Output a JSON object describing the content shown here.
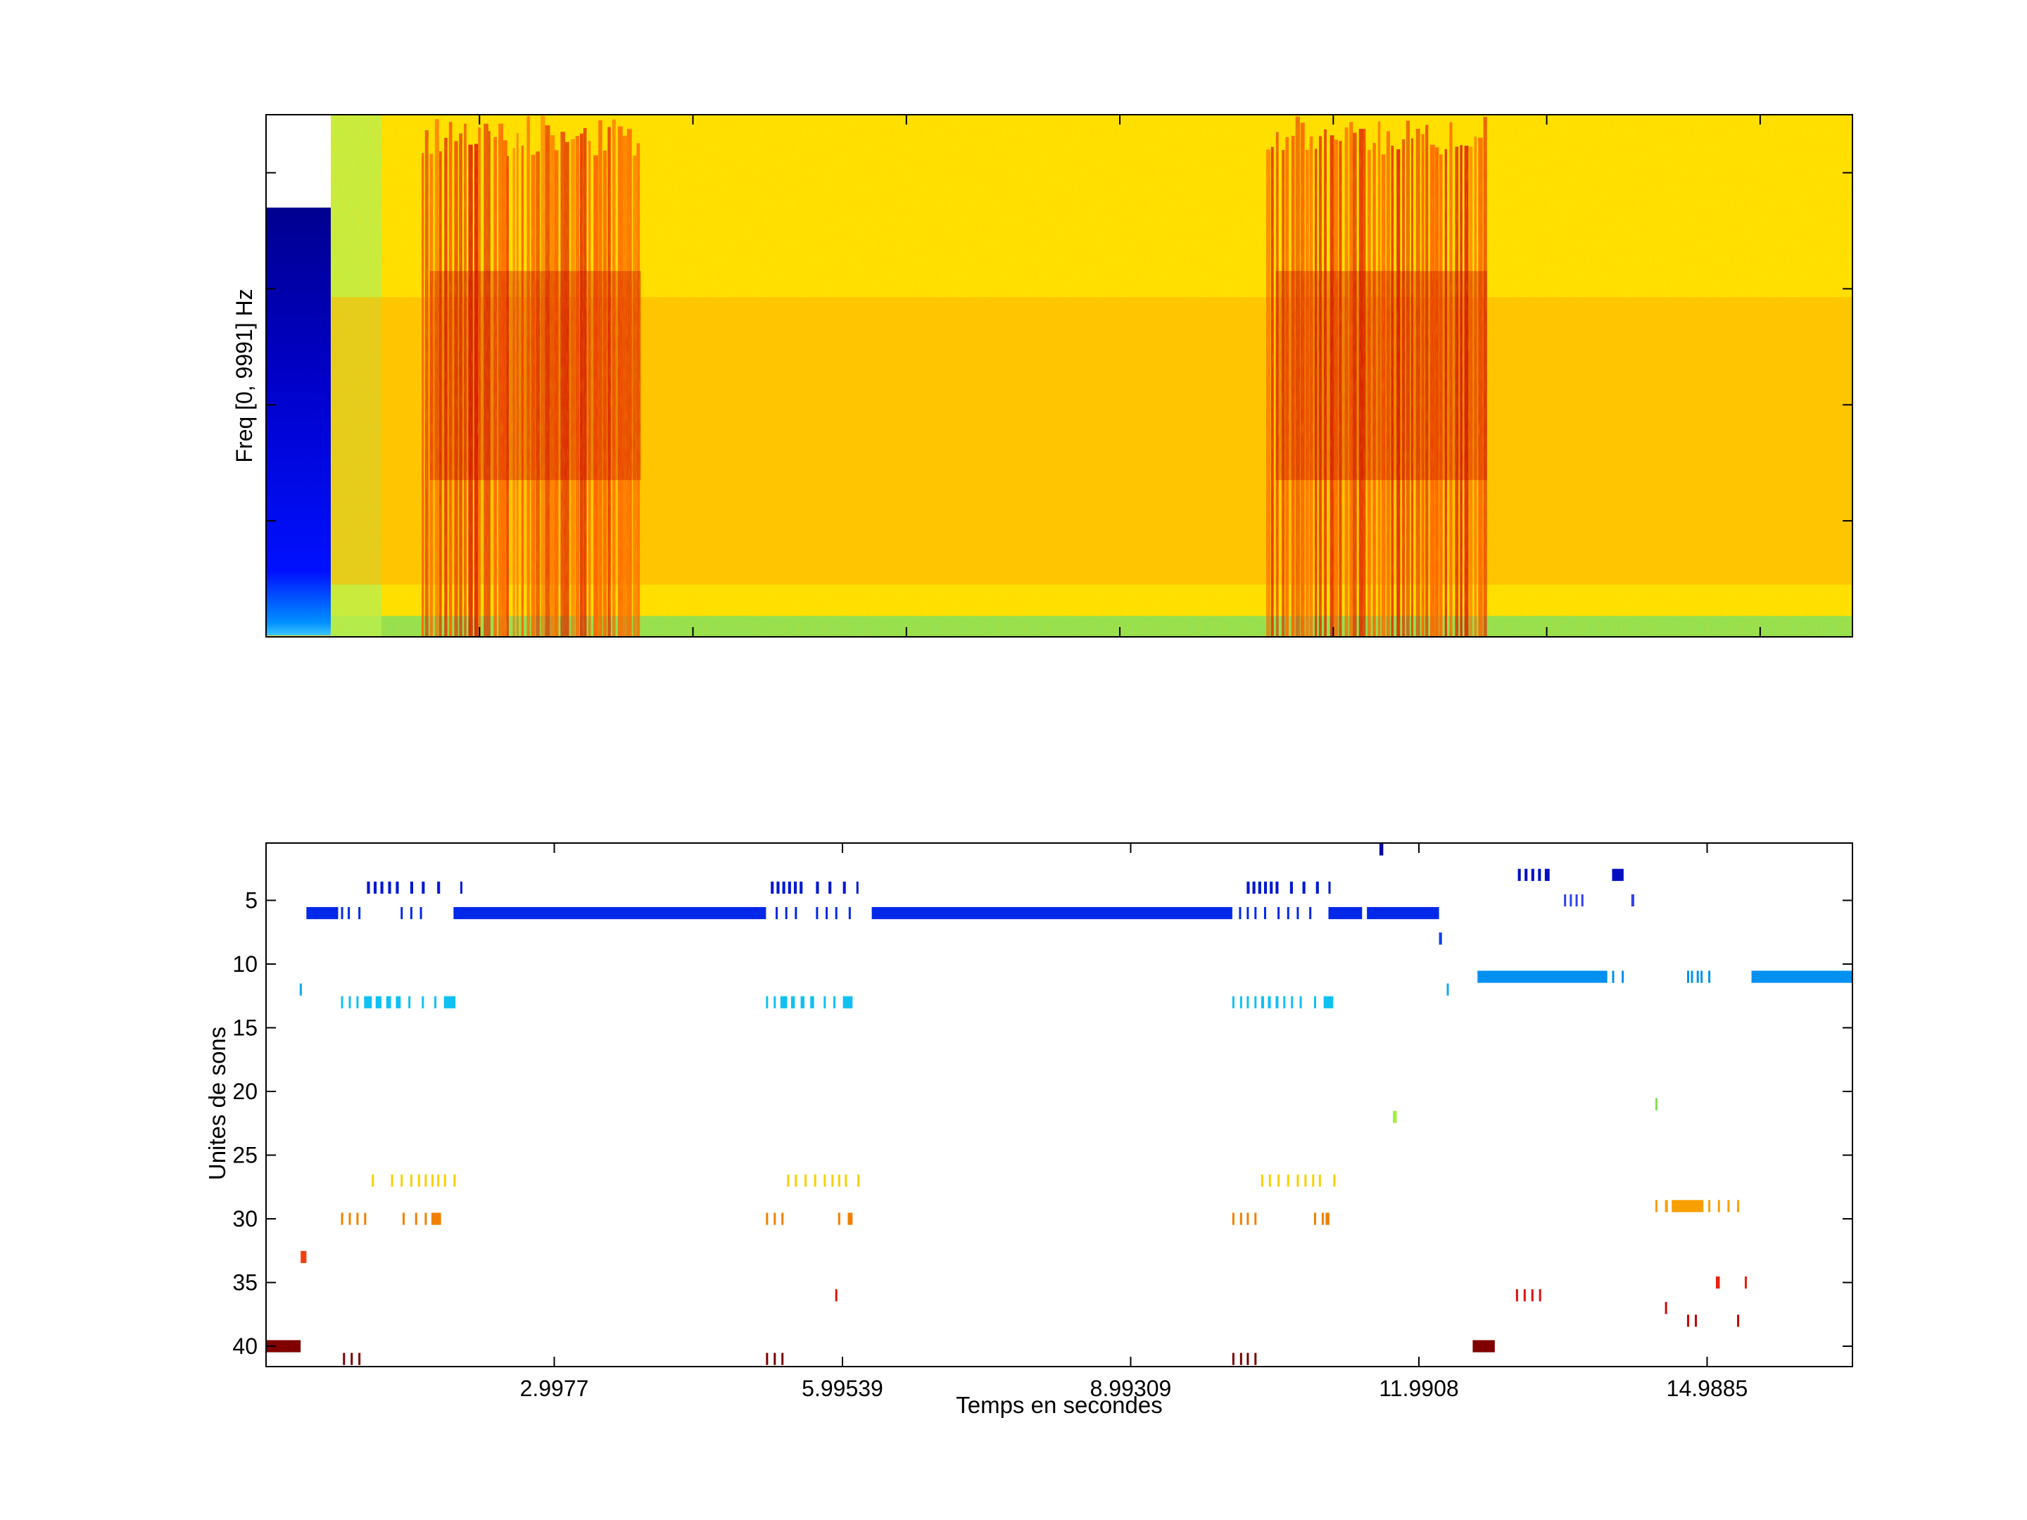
{
  "chart_data": [
    {
      "type": "heatmap",
      "title": "",
      "ylabel": "Freq [0, 9991] Hz",
      "xlabel": "",
      "xlim": [
        0,
        16.5
      ],
      "ylim": [
        0,
        9991
      ],
      "colormap": "jet",
      "colorbar_position": "left-inside",
      "x_ticks": [
        2.22,
        4.44,
        6.66,
        8.88,
        11.1,
        13.32,
        15.54
      ],
      "y_ticks": [
        2220,
        4440,
        6660,
        8880
      ],
      "bursts": [
        {
          "start": 1.6,
          "end": 3.9
        },
        {
          "start": 10.4,
          "end": 12.7
        }
      ],
      "colors": {
        "background": "#ffe400",
        "hot": "#c40000",
        "cool": "#80e060",
        "cold": "#0000a0"
      }
    },
    {
      "type": "scatter",
      "title": "",
      "xlabel": "Temps en secondes",
      "ylabel": "Unites de sons",
      "xlim": [
        0,
        16.5
      ],
      "ylim": [
        41.6,
        0.5
      ],
      "x_tick_labels": [
        "2.9977",
        "5.99539",
        "8.99309",
        "11.9908",
        "14.9885"
      ],
      "x_tick_values": [
        2.9977,
        5.99539,
        8.99309,
        11.9908,
        14.9885
      ],
      "y_tick_labels": [
        "5",
        "10",
        "15",
        "20",
        "25",
        "30",
        "35",
        "40"
      ],
      "y_tick_values": [
        5,
        10,
        15,
        20,
        25,
        30,
        35,
        40
      ],
      "series": [
        {
          "unit": 1,
          "color": "#0000a8",
          "segments": [
            [
              11.58,
              11.62
            ]
          ]
        },
        {
          "unit": 3,
          "color": "#0010c0",
          "segments": [
            [
              13.02,
              13.05
            ],
            [
              13.09,
              13.12
            ],
            [
              13.16,
              13.19
            ],
            [
              13.23,
              13.26
            ],
            [
              13.3,
              13.35
            ],
            [
              14.0,
              14.12
            ]
          ]
        },
        {
          "unit": 4,
          "color": "#0018d0",
          "segments": [
            [
              1.05,
              1.08
            ],
            [
              1.12,
              1.15
            ],
            [
              1.19,
              1.22
            ],
            [
              1.27,
              1.3
            ],
            [
              1.35,
              1.38
            ],
            [
              1.5,
              1.53
            ],
            [
              1.62,
              1.65
            ],
            [
              1.78,
              1.81
            ],
            [
              2.02,
              2.04
            ],
            [
              5.25,
              5.28
            ],
            [
              5.31,
              5.34
            ],
            [
              5.37,
              5.4
            ],
            [
              5.43,
              5.46
            ],
            [
              5.49,
              5.52
            ],
            [
              5.55,
              5.58
            ],
            [
              5.72,
              5.75
            ],
            [
              5.85,
              5.88
            ],
            [
              6.0,
              6.03
            ],
            [
              6.14,
              6.16
            ],
            [
              10.2,
              10.23
            ],
            [
              10.26,
              10.29
            ],
            [
              10.32,
              10.35
            ],
            [
              10.38,
              10.41
            ],
            [
              10.44,
              10.47
            ],
            [
              10.5,
              10.53
            ],
            [
              10.65,
              10.68
            ],
            [
              10.78,
              10.81
            ],
            [
              10.92,
              10.95
            ],
            [
              11.05,
              11.07
            ]
          ]
        },
        {
          "unit": 5,
          "color": "#3040f0",
          "segments": [
            [
              13.5,
              13.52
            ],
            [
              13.56,
              13.58
            ],
            [
              13.62,
              13.64
            ],
            [
              13.68,
              13.7
            ],
            [
              14.2,
              14.23
            ]
          ]
        },
        {
          "unit": 6,
          "color": "#0028e8",
          "segments": [
            [
              0.42,
              0.75
            ],
            [
              0.78,
              0.8
            ],
            [
              0.85,
              0.87
            ],
            [
              0.96,
              0.98
            ],
            [
              1.4,
              1.42
            ],
            [
              1.5,
              1.52
            ],
            [
              1.6,
              1.62
            ],
            [
              1.95,
              5.2
            ],
            [
              5.3,
              5.32
            ],
            [
              5.4,
              5.42
            ],
            [
              5.5,
              5.52
            ],
            [
              5.72,
              5.74
            ],
            [
              5.82,
              5.84
            ],
            [
              5.92,
              5.94
            ],
            [
              6.06,
              6.08
            ],
            [
              6.3,
              10.05
            ],
            [
              10.12,
              10.14
            ],
            [
              10.2,
              10.22
            ],
            [
              10.28,
              10.3
            ],
            [
              10.38,
              10.4
            ],
            [
              10.52,
              10.54
            ],
            [
              10.62,
              10.64
            ],
            [
              10.72,
              10.74
            ],
            [
              10.85,
              10.87
            ],
            [
              11.05,
              11.4
            ],
            [
              11.45,
              12.2
            ]
          ]
        },
        {
          "unit": 8,
          "color": "#0040f0",
          "segments": [
            [
              12.2,
              12.23
            ]
          ]
        },
        {
          "unit": 11,
          "color": "#0090f0",
          "segments": [
            [
              12.6,
              13.95
            ],
            [
              14.0,
              14.02
            ],
            [
              14.1,
              14.12
            ],
            [
              14.78,
              14.8
            ],
            [
              14.82,
              14.84
            ],
            [
              14.88,
              14.9
            ],
            [
              14.92,
              14.94
            ],
            [
              15.0,
              15.02
            ],
            [
              15.45,
              16.5
            ]
          ]
        },
        {
          "unit": 12,
          "color": "#10a8f0",
          "segments": [
            [
              0.35,
              0.37
            ],
            [
              12.28,
              12.3
            ]
          ]
        },
        {
          "unit": 13,
          "color": "#10c0f0",
          "segments": [
            [
              0.78,
              0.8
            ],
            [
              0.86,
              0.88
            ],
            [
              0.94,
              0.96
            ],
            [
              1.02,
              1.1
            ],
            [
              1.14,
              1.2
            ],
            [
              1.25,
              1.3
            ],
            [
              1.35,
              1.4
            ],
            [
              1.48,
              1.5
            ],
            [
              1.62,
              1.64
            ],
            [
              1.75,
              1.77
            ],
            [
              1.85,
              1.97
            ],
            [
              5.2,
              5.22
            ],
            [
              5.28,
              5.3
            ],
            [
              5.35,
              5.42
            ],
            [
              5.46,
              5.5
            ],
            [
              5.56,
              5.6
            ],
            [
              5.66,
              5.7
            ],
            [
              5.8,
              5.82
            ],
            [
              5.9,
              5.92
            ],
            [
              6.0,
              6.1
            ],
            [
              10.05,
              10.07
            ],
            [
              10.13,
              10.15
            ],
            [
              10.2,
              10.22
            ],
            [
              10.28,
              10.3
            ],
            [
              10.35,
              10.38
            ],
            [
              10.42,
              10.45
            ],
            [
              10.5,
              10.53
            ],
            [
              10.58,
              10.6
            ],
            [
              10.66,
              10.68
            ],
            [
              10.75,
              10.77
            ],
            [
              10.9,
              10.92
            ],
            [
              11.0,
              11.1
            ]
          ]
        },
        {
          "unit": 21,
          "color": "#80e050",
          "segments": [
            [
              14.45,
              14.47
            ]
          ]
        },
        {
          "unit": 22,
          "color": "#a0f040",
          "segments": [
            [
              11.72,
              11.76
            ]
          ]
        },
        {
          "unit": 27,
          "color": "#f8d000",
          "segments": [
            [
              1.1,
              1.12
            ],
            [
              1.3,
              1.32
            ],
            [
              1.4,
              1.42
            ],
            [
              1.5,
              1.52
            ],
            [
              1.58,
              1.6
            ],
            [
              1.65,
              1.67
            ],
            [
              1.72,
              1.74
            ],
            [
              1.78,
              1.8
            ],
            [
              1.85,
              1.87
            ],
            [
              1.95,
              1.97
            ],
            [
              5.42,
              5.44
            ],
            [
              5.5,
              5.52
            ],
            [
              5.6,
              5.62
            ],
            [
              5.7,
              5.72
            ],
            [
              5.8,
              5.82
            ],
            [
              5.88,
              5.9
            ],
            [
              5.95,
              5.97
            ],
            [
              6.02,
              6.04
            ],
            [
              6.15,
              6.17
            ],
            [
              10.35,
              10.37
            ],
            [
              10.43,
              10.45
            ],
            [
              10.52,
              10.54
            ],
            [
              10.62,
              10.64
            ],
            [
              10.72,
              10.74
            ],
            [
              10.8,
              10.82
            ],
            [
              10.88,
              10.9
            ],
            [
              10.95,
              10.97
            ],
            [
              11.1,
              11.12
            ]
          ]
        },
        {
          "unit": 29,
          "color": "#f8a000",
          "segments": [
            [
              14.45,
              14.47
            ],
            [
              14.55,
              14.58
            ],
            [
              14.62,
              14.95
            ],
            [
              15.0,
              15.02
            ],
            [
              15.1,
              15.12
            ],
            [
              15.2,
              15.22
            ],
            [
              15.3,
              15.32
            ]
          ]
        },
        {
          "unit": 30,
          "color": "#f08000",
          "segments": [
            [
              0.78,
              0.8
            ],
            [
              0.86,
              0.88
            ],
            [
              0.94,
              0.96
            ],
            [
              1.02,
              1.04
            ],
            [
              1.42,
              1.44
            ],
            [
              1.55,
              1.57
            ],
            [
              1.65,
              1.67
            ],
            [
              1.72,
              1.82
            ],
            [
              5.2,
              5.22
            ],
            [
              5.28,
              5.3
            ],
            [
              5.36,
              5.38
            ],
            [
              5.95,
              5.97
            ],
            [
              6.05,
              6.1
            ],
            [
              10.05,
              10.07
            ],
            [
              10.13,
              10.15
            ],
            [
              10.2,
              10.22
            ],
            [
              10.28,
              10.3
            ],
            [
              10.9,
              10.92
            ],
            [
              10.98,
              11.0
            ],
            [
              11.02,
              11.06
            ]
          ]
        },
        {
          "unit": 33,
          "color": "#f04010",
          "segments": [
            [
              0.36,
              0.42
            ]
          ]
        },
        {
          "unit": 35,
          "color": "#e82010",
          "segments": [
            [
              15.08,
              15.12
            ],
            [
              15.38,
              15.4
            ]
          ]
        },
        {
          "unit": 36,
          "color": "#e01010",
          "segments": [
            [
              5.92,
              5.94
            ],
            [
              13.0,
              13.02
            ],
            [
              13.08,
              13.1
            ],
            [
              13.16,
              13.18
            ],
            [
              13.24,
              13.26
            ]
          ]
        },
        {
          "unit": 37,
          "color": "#d00808",
          "segments": [
            [
              14.55,
              14.57
            ]
          ]
        },
        {
          "unit": 38,
          "color": "#c00000",
          "segments": [
            [
              14.78,
              14.8
            ],
            [
              14.86,
              14.88
            ],
            [
              15.3,
              15.32
            ]
          ]
        },
        {
          "unit": 40,
          "color": "#800000",
          "segments": [
            [
              0.0,
              0.36
            ],
            [
              12.55,
              12.78
            ]
          ]
        },
        {
          "unit": 41,
          "color": "#7a0000",
          "segments": [
            [
              0.8,
              0.82
            ],
            [
              0.88,
              0.9
            ],
            [
              0.96,
              0.98
            ],
            [
              5.2,
              5.22
            ],
            [
              5.28,
              5.3
            ],
            [
              5.36,
              5.38
            ],
            [
              10.05,
              10.07
            ],
            [
              10.13,
              10.15
            ],
            [
              10.2,
              10.22
            ],
            [
              10.28,
              10.3
            ]
          ]
        }
      ]
    }
  ]
}
